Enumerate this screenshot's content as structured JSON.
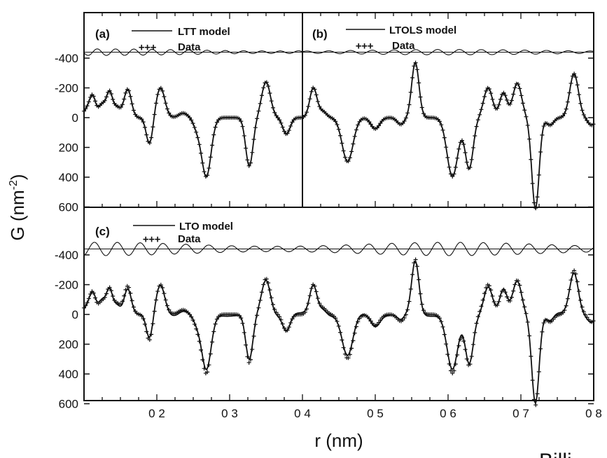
{
  "chart_data": {
    "type": "line",
    "xlabel": "r (nm)",
    "ylabel": "G (nm-2)",
    "ylabel_main": "G (nm",
    "ylabel_sup": "-2",
    "ylabel_close": ")",
    "xlim": [
      0.1,
      0.8
    ],
    "ylim": [
      -520,
      680
    ],
    "x_ticks": [
      0.2,
      0.3,
      0.4,
      0.5,
      0.6,
      0.7,
      0.8
    ],
    "x_tick_labels": [
      "0 2",
      "0 3",
      "0 4",
      "0 5",
      "0 6",
      "0 7",
      "0 8"
    ],
    "y_ticks": [
      -400,
      -200,
      0,
      200,
      400,
      600
    ],
    "y_tick_labels": [
      "-400",
      "-200",
      "0",
      "200",
      "400",
      "600"
    ],
    "data_peaks": [
      {
        "x": 0.105,
        "y": -60,
        "w": 0.006
      },
      {
        "x": 0.125,
        "y": -90,
        "w": 0.005
      },
      {
        "x": 0.145,
        "y": -70,
        "w": 0.005
      },
      {
        "x": 0.19,
        "y": 180,
        "w": 0.0045
      },
      {
        "x": 0.236,
        "y": -30,
        "w": 0.006
      },
      {
        "x": 0.255,
        "y": 60,
        "w": 0.005
      },
      {
        "x": 0.268,
        "y": 395,
        "w": 0.0065
      },
      {
        "x": 0.327,
        "y": 325,
        "w": 0.005
      },
      {
        "x": 0.378,
        "y": 110,
        "w": 0.005
      },
      {
        "x": 0.428,
        "y": -40,
        "w": 0.005
      },
      {
        "x": 0.462,
        "y": 295,
        "w": 0.0075
      },
      {
        "x": 0.5,
        "y": 75,
        "w": 0.006
      },
      {
        "x": 0.535,
        "y": 45,
        "w": 0.005
      },
      {
        "x": 0.606,
        "y": 395,
        "w": 0.0075
      },
      {
        "x": 0.629,
        "y": 340,
        "w": 0.0055
      },
      {
        "x": 0.676,
        "y": -165,
        "w": 0.005
      },
      {
        "x": 0.72,
        "y": 610,
        "w": 0.005
      },
      {
        "x": 0.74,
        "y": 50,
        "w": 0.005
      },
      {
        "x": 0.797,
        "y": 50,
        "w": 0.005
      }
    ],
    "data_valleys": [
      {
        "x": 0.112,
        "y": -120,
        "w": 0.004
      },
      {
        "x": 0.135,
        "y": -160,
        "w": 0.004
      },
      {
        "x": 0.16,
        "y": -190,
        "w": 0.005
      },
      {
        "x": 0.205,
        "y": -200,
        "w": 0.006
      },
      {
        "x": 0.35,
        "y": -240,
        "w": 0.006
      },
      {
        "x": 0.415,
        "y": -200,
        "w": 0.005
      },
      {
        "x": 0.555,
        "y": -370,
        "w": 0.005
      },
      {
        "x": 0.655,
        "y": -200,
        "w": 0.006
      },
      {
        "x": 0.695,
        "y": -230,
        "w": 0.006
      },
      {
        "x": 0.773,
        "y": -295,
        "w": 0.006
      }
    ],
    "baseline": -440,
    "series": [
      {
        "name": "LTT model",
        "panel": "a",
        "marker": "line"
      },
      {
        "name": "LTOLS model",
        "panel": "b",
        "marker": "line"
      },
      {
        "name": "LTO model",
        "panel": "c",
        "marker": "line"
      },
      {
        "name": "Data",
        "marker": "+"
      }
    ]
  },
  "panels": {
    "a": {
      "tag": "(a)",
      "model_label": "LTT model",
      "data_label": "Data",
      "data_symbol": "+++"
    },
    "b": {
      "tag": "(b)",
      "model_label": "LTOLS model",
      "data_label": "Data",
      "data_symbol": "+++"
    },
    "c": {
      "tag": "(c)",
      "model_label": "LTO model",
      "data_label": "Data",
      "data_symbol": "+++"
    }
  },
  "footer": {
    "text": "Billi"
  },
  "colors": {
    "ink": "#111111",
    "background": "#ffffff"
  }
}
